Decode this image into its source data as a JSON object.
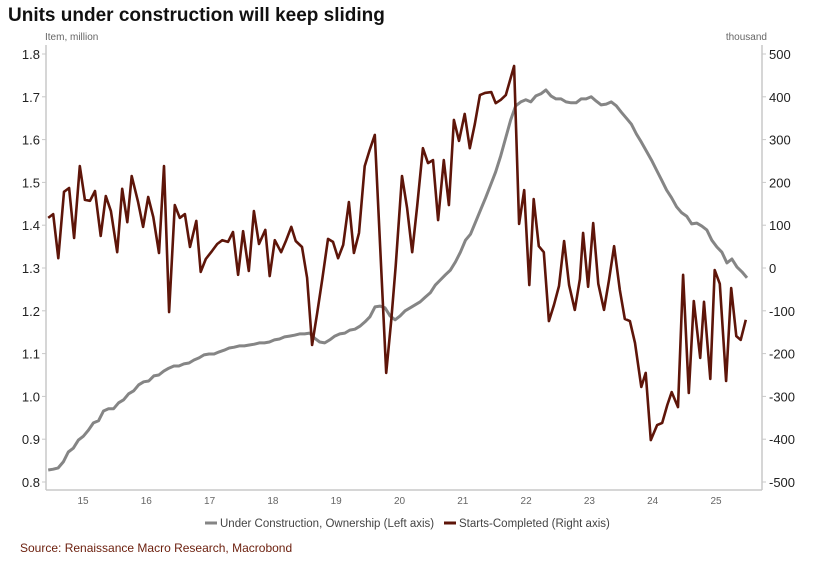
{
  "chart_data": {
    "type": "line",
    "title": "Units under construction will keep sliding",
    "left_axis": {
      "label": "Item, million",
      "ylim": [
        0.8,
        1.8
      ],
      "ticks": [
        "0.8",
        "0.9",
        "1.0",
        "1.1",
        "1.2",
        "1.3",
        "1.4",
        "1.5",
        "1.6",
        "1.7",
        "1.8"
      ]
    },
    "right_axis": {
      "label": "thousand",
      "ylim": [
        -500,
        500
      ],
      "ticks": [
        "-500",
        "-400",
        "-300",
        "-200",
        "-100",
        "0",
        "100",
        "200",
        "300",
        "400",
        "500"
      ]
    },
    "x_axis": {
      "ticks": [
        "15",
        "16",
        "17",
        "18",
        "19",
        "20",
        "21",
        "22",
        "23",
        "24",
        "25"
      ],
      "tick_years": [
        2015,
        2016,
        2017,
        2018,
        2019,
        2020,
        2021,
        2022,
        2023,
        2024,
        2025
      ],
      "xlim": [
        2014.4,
        2025.75
      ]
    },
    "grid": false,
    "legend_position": "bottom",
    "source": "Source: Renaissance Macro Research, Macrobond",
    "series": [
      {
        "name": "Under Construction, Ownership (Left axis)",
        "axis": "left",
        "color": "#858585",
        "start": 2014.45,
        "end": 2025.49,
        "values": [
          0.828,
          0.83,
          0.833,
          0.847,
          0.87,
          0.879,
          0.898,
          0.907,
          0.921,
          0.938,
          0.943,
          0.966,
          0.971,
          0.971,
          0.985,
          0.992,
          1.006,
          1.013,
          1.027,
          1.034,
          1.036,
          1.048,
          1.05,
          1.059,
          1.066,
          1.071,
          1.071,
          1.076,
          1.078,
          1.085,
          1.09,
          1.097,
          1.099,
          1.099,
          1.104,
          1.108,
          1.113,
          1.115,
          1.118,
          1.118,
          1.12,
          1.122,
          1.125,
          1.125,
          1.127,
          1.132,
          1.134,
          1.139,
          1.141,
          1.143,
          1.146,
          1.146,
          1.148,
          1.136,
          1.127,
          1.125,
          1.132,
          1.141,
          1.146,
          1.148,
          1.155,
          1.157,
          1.164,
          1.174,
          1.186,
          1.209,
          1.211,
          1.207,
          1.188,
          1.179,
          1.188,
          1.2,
          1.207,
          1.214,
          1.221,
          1.232,
          1.242,
          1.26,
          1.272,
          1.284,
          1.295,
          1.314,
          1.337,
          1.365,
          1.379,
          1.407,
          1.436,
          1.464,
          1.494,
          1.524,
          1.562,
          1.604,
          1.646,
          1.679,
          1.688,
          1.693,
          1.688,
          1.702,
          1.707,
          1.716,
          1.702,
          1.695,
          1.695,
          1.688,
          1.686,
          1.686,
          1.695,
          1.695,
          1.7,
          1.69,
          1.681,
          1.683,
          1.688,
          1.679,
          1.664,
          1.65,
          1.636,
          1.613,
          1.594,
          1.573,
          1.552,
          1.529,
          1.506,
          1.482,
          1.464,
          1.443,
          1.429,
          1.421,
          1.403,
          1.405,
          1.398,
          1.389,
          1.365,
          1.349,
          1.337,
          1.312,
          1.321,
          1.302,
          1.291,
          1.277
        ]
      },
      {
        "name": "Starts-Completed (Right axis)",
        "axis": "right",
        "color": "#5e1509",
        "points": [
          [
            2014.45,
            117
          ],
          [
            2014.53,
            126
          ],
          [
            2014.61,
            23
          ],
          [
            2014.7,
            178
          ],
          [
            2014.78,
            187
          ],
          [
            2014.86,
            70
          ],
          [
            2014.95,
            238
          ],
          [
            2015.03,
            159
          ],
          [
            2015.11,
            157
          ],
          [
            2015.19,
            180
          ],
          [
            2015.28,
            75
          ],
          [
            2015.36,
            168
          ],
          [
            2015.44,
            133
          ],
          [
            2015.54,
            37
          ],
          [
            2015.62,
            185
          ],
          [
            2015.7,
            107
          ],
          [
            2015.77,
            215
          ],
          [
            2015.87,
            154
          ],
          [
            2015.95,
            96
          ],
          [
            2016.03,
            166
          ],
          [
            2016.11,
            119
          ],
          [
            2016.2,
            35
          ],
          [
            2016.28,
            238
          ],
          [
            2016.36,
            -103
          ],
          [
            2016.45,
            147
          ],
          [
            2016.53,
            117
          ],
          [
            2016.61,
            126
          ],
          [
            2016.69,
            49
          ],
          [
            2016.79,
            110
          ],
          [
            2016.86,
            -9
          ],
          [
            2016.94,
            21
          ],
          [
            2017.04,
            40
          ],
          [
            2017.12,
            56
          ],
          [
            2017.2,
            65
          ],
          [
            2017.29,
            61
          ],
          [
            2017.37,
            84
          ],
          [
            2017.45,
            -16
          ],
          [
            2017.53,
            86
          ],
          [
            2017.62,
            -7
          ],
          [
            2017.7,
            133
          ],
          [
            2017.78,
            56
          ],
          [
            2017.88,
            89
          ],
          [
            2017.95,
            -19
          ],
          [
            2018.03,
            65
          ],
          [
            2018.13,
            37
          ],
          [
            2018.21,
            65
          ],
          [
            2018.29,
            96
          ],
          [
            2018.36,
            63
          ],
          [
            2018.46,
            49
          ],
          [
            2018.54,
            -23
          ],
          [
            2018.62,
            -180
          ],
          [
            2018.7,
            -105
          ],
          [
            2018.78,
            -26
          ],
          [
            2018.87,
            68
          ],
          [
            2018.95,
            61
          ],
          [
            2019.03,
            23
          ],
          [
            2019.11,
            54
          ],
          [
            2019.2,
            154
          ],
          [
            2019.28,
            35
          ],
          [
            2019.36,
            82
          ],
          [
            2019.45,
            238
          ],
          [
            2019.53,
            276
          ],
          [
            2019.61,
            311
          ],
          [
            2019.79,
            -245
          ],
          [
            2019.87,
            -121
          ],
          [
            2019.94,
            5
          ],
          [
            2020.04,
            215
          ],
          [
            2020.12,
            140
          ],
          [
            2020.2,
            37
          ],
          [
            2020.28,
            145
          ],
          [
            2020.37,
            280
          ],
          [
            2020.45,
            245
          ],
          [
            2020.53,
            252
          ],
          [
            2020.61,
            112
          ],
          [
            2020.7,
            252
          ],
          [
            2020.78,
            147
          ],
          [
            2020.86,
            346
          ],
          [
            2020.94,
            297
          ],
          [
            2021.03,
            360
          ],
          [
            2021.11,
            280
          ],
          [
            2021.19,
            336
          ],
          [
            2021.27,
            404
          ],
          [
            2021.35,
            409
          ],
          [
            2021.45,
            411
          ],
          [
            2021.52,
            385
          ],
          [
            2021.6,
            393
          ],
          [
            2021.68,
            404
          ],
          [
            2021.81,
            472
          ],
          [
            2021.89,
            103
          ],
          [
            2021.97,
            182
          ],
          [
            2022.05,
            -40
          ],
          [
            2022.12,
            161
          ],
          [
            2022.2,
            51
          ],
          [
            2022.28,
            37
          ],
          [
            2022.36,
            -124
          ],
          [
            2022.44,
            -86
          ],
          [
            2022.52,
            -42
          ],
          [
            2022.6,
            63
          ],
          [
            2022.68,
            -40
          ],
          [
            2022.77,
            -98
          ],
          [
            2022.85,
            -26
          ],
          [
            2022.9,
            82
          ],
          [
            2022.98,
            -44
          ],
          [
            2023.06,
            105
          ],
          [
            2023.14,
            -37
          ],
          [
            2023.23,
            -98
          ],
          [
            2023.31,
            -28
          ],
          [
            2023.39,
            51
          ],
          [
            2023.48,
            -51
          ],
          [
            2023.56,
            -119
          ],
          [
            2023.64,
            -124
          ],
          [
            2023.72,
            -175
          ],
          [
            2023.82,
            -278
          ],
          [
            2023.89,
            -245
          ],
          [
            2023.97,
            -402
          ],
          [
            2024.07,
            -367
          ],
          [
            2024.15,
            -362
          ],
          [
            2024.23,
            -320
          ],
          [
            2024.3,
            -290
          ],
          [
            2024.4,
            -325
          ],
          [
            2024.48,
            -16
          ],
          [
            2024.57,
            -292
          ],
          [
            2024.65,
            -77
          ],
          [
            2024.75,
            -210
          ],
          [
            2024.81,
            -79
          ],
          [
            2024.91,
            -259
          ],
          [
            2024.98,
            -5
          ],
          [
            2025.06,
            -37
          ],
          [
            2025.16,
            -264
          ],
          [
            2025.24,
            -47
          ],
          [
            2025.32,
            -159
          ],
          [
            2025.39,
            -168
          ],
          [
            2025.47,
            -121
          ]
        ]
      }
    ]
  }
}
